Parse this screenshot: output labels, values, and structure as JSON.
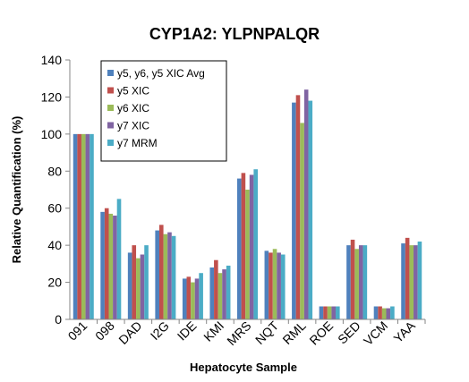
{
  "chart_data": {
    "type": "bar",
    "title": "CYP1A2: YLPNPALQR",
    "xlabel": "Hepatocyte Sample",
    "ylabel": "Relative Quantification (%)",
    "ylim": [
      0,
      140
    ],
    "yticks": [
      0,
      20,
      40,
      60,
      80,
      100,
      120,
      140
    ],
    "grid": false,
    "legend_position": "top-left",
    "categories": [
      "091",
      "098",
      "DAD",
      "I2G",
      "IDE",
      "KMI",
      "MRS",
      "NQT",
      "RML",
      "ROE",
      "SED",
      "VCM",
      "YAA"
    ],
    "series": [
      {
        "name": "y5, y6, y5 XIC Avg",
        "color": "#4f81bd",
        "values": [
          100,
          58,
          36,
          48,
          22,
          28,
          76,
          37,
          117,
          7,
          40,
          7,
          41
        ]
      },
      {
        "name": "y5 XIC",
        "color": "#c0504d",
        "values": [
          100,
          60,
          40,
          51,
          23,
          32,
          79,
          36,
          121,
          7,
          43,
          7,
          44
        ]
      },
      {
        "name": "y6 XIC",
        "color": "#9bbb59",
        "values": [
          100,
          57,
          33,
          46,
          20,
          25,
          70,
          38,
          106,
          7,
          38,
          6,
          40
        ]
      },
      {
        "name": "y7 XIC",
        "color": "#8064a2",
        "values": [
          100,
          56,
          35,
          47,
          22,
          27,
          78,
          36,
          124,
          7,
          40,
          6,
          40
        ]
      },
      {
        "name": "y7 MRM",
        "color": "#4bacc6",
        "values": [
          100,
          65,
          40,
          45,
          25,
          29,
          81,
          35,
          118,
          7,
          40,
          7,
          42
        ]
      }
    ]
  }
}
